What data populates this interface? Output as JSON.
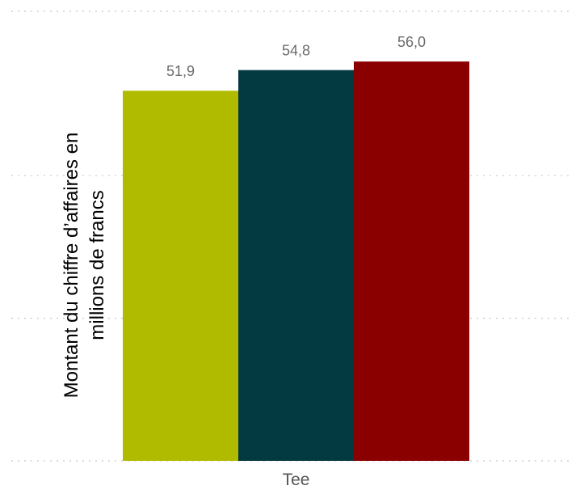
{
  "chart_data": {
    "type": "bar",
    "categories": [
      "Tee"
    ],
    "series": [
      {
        "values": [
          51.9
        ],
        "color": "#b0bb00",
        "data_label": "51,9"
      },
      {
        "values": [
          54.8
        ],
        "color": "#033941",
        "data_label": "54,8"
      },
      {
        "values": [
          56.0
        ],
        "color": "#8a0000",
        "data_label": "56,0"
      }
    ],
    "ylabel_lines": [
      "Montant du chiffre d’affaires en",
      "millions de francs"
    ],
    "ylim": [
      0,
      60
    ],
    "grid": true,
    "legend": "none"
  }
}
